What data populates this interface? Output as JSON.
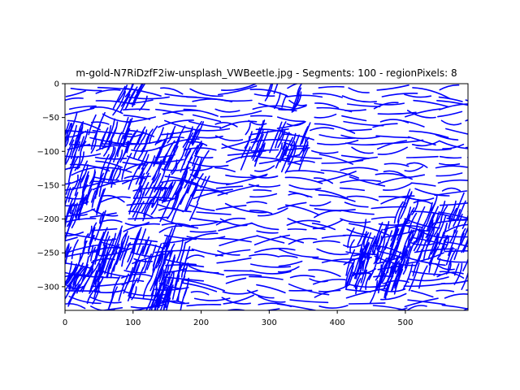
{
  "chart_data": {
    "type": "line",
    "title": "m-gold-N7RiDzfF2iw-unsplash_VWBeetle.jpg - Segments: 100 - regionPixels: 8",
    "xlabel": "",
    "ylabel": "",
    "xlim": [
      0,
      592
    ],
    "ylim": [
      -335,
      0
    ],
    "xticks": [
      0,
      100,
      200,
      300,
      400,
      500
    ],
    "yticks": [
      0,
      -50,
      -100,
      -150,
      -200,
      -250,
      -300
    ],
    "xtick_labels": [
      "0",
      "100",
      "200",
      "300",
      "400",
      "500"
    ],
    "ytick_labels": [
      "0",
      "−50",
      "−100",
      "−150",
      "−200",
      "−250",
      "−300"
    ],
    "line_color": "#0000ff",
    "grid": false,
    "legend": "none",
    "dense_regions": [
      {
        "x": [
          0,
          95
        ],
        "y": [
          -60,
          -140
        ],
        "angle": 70
      },
      {
        "x": [
          95,
          205
        ],
        "y": [
          -70,
          -190
        ],
        "angle": 65
      },
      {
        "x": [
          0,
          60
        ],
        "y": [
          -140,
          -295
        ],
        "angle": 72
      },
      {
        "x": [
          0,
          50
        ],
        "y": [
          -270,
          -325
        ],
        "angle": 60
      },
      {
        "x": [
          45,
          160
        ],
        "y": [
          -225,
          -325
        ],
        "angle": 70
      },
      {
        "x": [
          130,
          180
        ],
        "y": [
          -240,
          -335
        ],
        "angle": 75
      },
      {
        "x": [
          265,
          355
        ],
        "y": [
          -65,
          -120
        ],
        "angle": 68
      },
      {
        "x": [
          70,
          125
        ],
        "y": [
          0,
          -30
        ],
        "angle": 62
      },
      {
        "x": [
          300,
          345
        ],
        "y": [
          0,
          -30
        ],
        "angle": 70
      },
      {
        "x": [
          415,
          490
        ],
        "y": [
          -215,
          -310
        ],
        "angle": 72
      },
      {
        "x": [
          490,
          592
        ],
        "y": [
          -165,
          -225
        ],
        "angle": 68
      },
      {
        "x": [
          450,
          592
        ],
        "y": [
          -225,
          -290
        ],
        "angle": 70
      }
    ]
  }
}
